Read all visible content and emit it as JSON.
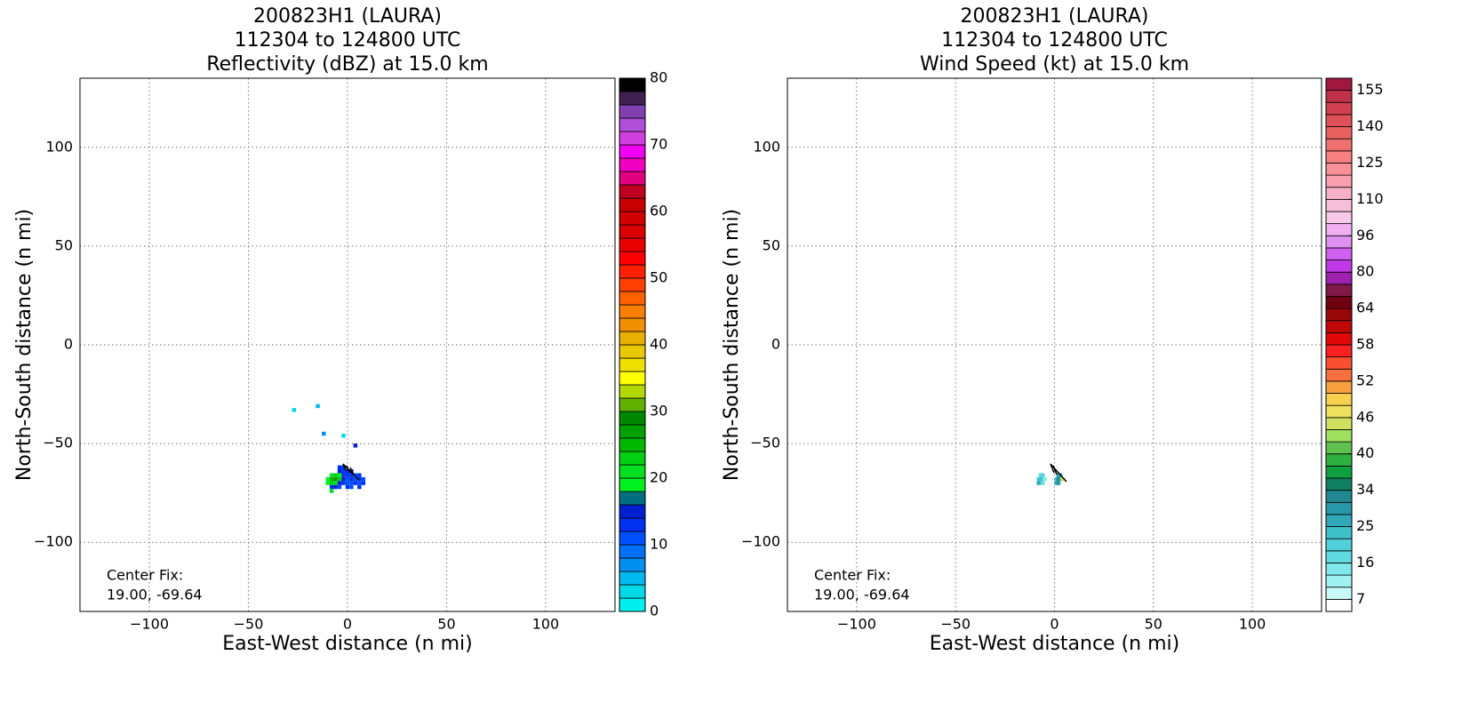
{
  "chart_data": [
    {
      "type": "heatmap",
      "title": [
        "200823H1 (LAURA)",
        "112304 to 124800 UTC",
        "Reflectivity (dBZ) at 15.0 km"
      ],
      "x_label": "East-West distance (n mi)",
      "y_label": "North-South distance (n mi)",
      "xlim": [
        -135,
        135
      ],
      "ylim": [
        -135,
        135
      ],
      "xticks": [
        {
          "value": -100,
          "label": "−100"
        },
        {
          "value": -50,
          "label": "−50"
        },
        0,
        50,
        100
      ],
      "yticks": [
        {
          "value": -100,
          "label": "−100"
        },
        {
          "value": -50,
          "label": "−50"
        },
        0,
        50,
        100
      ],
      "grid": true,
      "annotation": [
        "Center Fix:",
        "19.00, -69.64"
      ],
      "colorbar": {
        "levels": [
          0,
          2,
          4,
          6,
          8,
          10,
          12,
          14,
          16,
          18,
          20,
          22,
          24,
          26,
          28,
          30,
          32,
          34,
          36,
          38,
          40,
          42,
          44,
          46,
          48,
          50,
          52,
          54,
          56,
          58,
          60,
          62,
          64,
          66,
          68,
          70,
          72,
          74,
          76,
          78,
          80
        ],
        "colors": [
          "#00f0f0",
          "#00d8e8",
          "#00b8f0",
          "#0090f0",
          "#0070f8",
          "#0050ff",
          "#0030f0",
          "#0020d0",
          "#007080",
          "#00f020",
          "#00e020",
          "#00d010",
          "#00b800",
          "#00a000",
          "#008800",
          "#60b000",
          "#b0d800",
          "#ffff00",
          "#f0e000",
          "#e8c800",
          "#e8b000",
          "#f09000",
          "#f88000",
          "#ff6000",
          "#ff4000",
          "#ff2000",
          "#ff0000",
          "#e80000",
          "#d80000",
          "#d00000",
          "#c80000",
          "#c00020",
          "#e00080",
          "#f000c0",
          "#f000f0",
          "#d040e0",
          "#b050d8",
          "#8040b0",
          "#402050",
          "#000000"
        ],
        "ticks": [
          0,
          10,
          20,
          30,
          40,
          50,
          60,
          70,
          80
        ]
      },
      "cells": {
        "x": [
          -27,
          -15,
          -12,
          -2,
          4,
          -4,
          -2,
          -4,
          -2,
          0,
          2,
          -8,
          -6,
          -4,
          -2,
          0,
          2,
          4,
          6,
          -10,
          -8,
          -6,
          -4,
          -2,
          0,
          2,
          4,
          6,
          8,
          -10,
          -8,
          -6,
          -4,
          -2,
          0,
          2,
          4,
          6,
          8,
          -8,
          -6,
          -4,
          0,
          2,
          6,
          -8
        ],
        "y": [
          -33,
          -31,
          -45,
          -46,
          -51,
          -62,
          -62,
          -64,
          -64,
          -64,
          -64,
          -66,
          -66,
          -66,
          -66,
          -66,
          -66,
          -66,
          -66,
          -68,
          -68,
          -68,
          -68,
          -68,
          -68,
          -68,
          -68,
          -68,
          -68,
          -70,
          -70,
          -70,
          -70,
          -70,
          -70,
          -70,
          -70,
          -70,
          -70,
          -72,
          -72,
          -72,
          -72,
          -72,
          -72,
          -74
        ],
        "values": [
          3,
          5,
          6,
          2,
          14,
          12,
          13,
          14,
          12,
          12,
          13,
          20,
          22,
          18,
          13,
          12,
          12,
          11,
          13,
          19,
          24,
          26,
          22,
          14,
          11,
          12,
          10,
          12,
          11,
          18,
          22,
          21,
          14,
          12,
          11,
          11,
          12,
          10,
          12,
          13,
          14,
          11,
          12,
          11,
          13,
          21
        ]
      }
    },
    {
      "type": "heatmap",
      "title": [
        "200823H1 (LAURA)",
        "112304 to 124800 UTC",
        "Wind Speed (kt) at 15.0 km"
      ],
      "x_label": "East-West distance (n mi)",
      "y_label": "North-South distance (n mi)",
      "xlim": [
        -135,
        135
      ],
      "ylim": [
        -135,
        135
      ],
      "xticks": [
        {
          "value": -100,
          "label": "−100"
        },
        {
          "value": -50,
          "label": "−50"
        },
        0,
        50,
        100
      ],
      "yticks": [
        {
          "value": -100,
          "label": "−100"
        },
        {
          "value": -50,
          "label": "−50"
        },
        0,
        50,
        100
      ],
      "grid": true,
      "annotation": [
        "Center Fix:",
        "19.00, -69.64"
      ],
      "colorbar": {
        "levels": [
          0,
          7,
          10,
          13,
          16,
          19,
          22,
          25,
          28,
          31,
          34,
          36,
          38,
          40,
          42,
          44,
          46,
          48,
          50,
          52,
          54,
          56,
          58,
          60,
          62,
          64,
          69,
          75,
          80,
          85,
          91,
          96,
          101,
          105,
          110,
          115,
          120,
          125,
          130,
          135,
          140,
          145,
          150,
          155,
          160
        ],
        "colors": [
          "#ffffff",
          "#c8fafa",
          "#a0f2f2",
          "#80e8ea",
          "#60dce0",
          "#50d0d8",
          "#40c0c8",
          "#30a8b8",
          "#2898a8",
          "#208890",
          "#108060",
          "#10a040",
          "#30b040",
          "#60c050",
          "#a0e060",
          "#d0e060",
          "#f0e060",
          "#f8d050",
          "#f8a040",
          "#f87040",
          "#f85030",
          "#f82020",
          "#e00808",
          "#c00808",
          "#980808",
          "#700010",
          "#801848",
          "#a020b0",
          "#c038e8",
          "#d060f0",
          "#e090f0",
          "#f0b0f0",
          "#f8c8e8",
          "#f8c0d8",
          "#f8b0c8",
          "#f8a0b0",
          "#f89098",
          "#f88080",
          "#f07070",
          "#e86060",
          "#e05058",
          "#d04050",
          "#c03048",
          "#a01840"
        ],
        "ticks": [
          7,
          16,
          25,
          34,
          40,
          46,
          52,
          58,
          64,
          80,
          96,
          110,
          125,
          140,
          155
        ]
      },
      "cells": {
        "x": [
          -7,
          -6,
          2,
          3,
          -8,
          -7,
          -5,
          1,
          2,
          3,
          4,
          -8,
          -6,
          1,
          2
        ],
        "y": [
          -66,
          -66,
          -66,
          -66,
          -68,
          -68,
          -68,
          -68,
          -68,
          -68,
          -68,
          -70,
          -70,
          -70,
          -70
        ],
        "values": [
          16,
          19,
          28,
          25,
          20,
          22,
          14,
          22,
          31,
          30,
          44,
          25,
          18,
          26,
          28
        ]
      }
    }
  ]
}
